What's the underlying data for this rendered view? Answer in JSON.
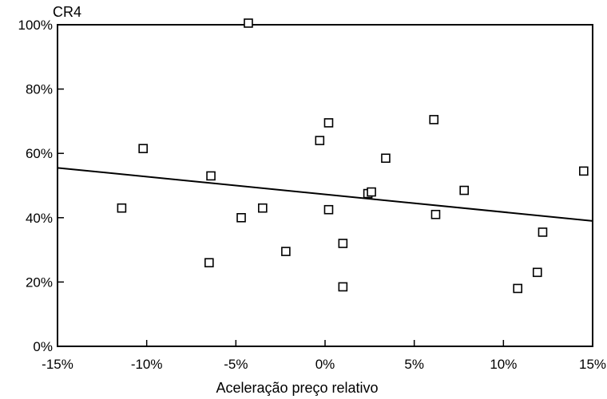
{
  "chart_data": {
    "type": "scatter",
    "title": "",
    "xlabel": "Aceleração preço relativo",
    "ylabel": "CR4",
    "xlim": [
      -15,
      15
    ],
    "ylim": [
      0,
      100
    ],
    "x_ticks": [
      -15,
      -10,
      -5,
      0,
      5,
      10,
      15
    ],
    "x_tick_labels": [
      "-15%",
      "-10%",
      "-5%",
      "0%",
      "5%",
      "10%",
      "15%"
    ],
    "y_ticks": [
      0,
      20,
      40,
      60,
      80,
      100
    ],
    "y_tick_labels": [
      "0%",
      "20%",
      "40%",
      "60%",
      "80%",
      "100%"
    ],
    "grid": false,
    "legend": "none",
    "marker": "open-square",
    "series": [
      {
        "points": [
          {
            "x": -11.4,
            "y": 43
          },
          {
            "x": -10.2,
            "y": 61.5
          },
          {
            "x": -6.5,
            "y": 26
          },
          {
            "x": -6.4,
            "y": 53
          },
          {
            "x": -4.7,
            "y": 40
          },
          {
            "x": -4.3,
            "y": 100.5
          },
          {
            "x": -3.5,
            "y": 43
          },
          {
            "x": -2.2,
            "y": 29.5
          },
          {
            "x": -0.3,
            "y": 64
          },
          {
            "x": 0.2,
            "y": 42.5
          },
          {
            "x": 0.2,
            "y": 69.5
          },
          {
            "x": 1.0,
            "y": 32
          },
          {
            "x": 1.0,
            "y": 18.5
          },
          {
            "x": 2.4,
            "y": 47.5
          },
          {
            "x": 2.6,
            "y": 48
          },
          {
            "x": 3.4,
            "y": 58.5
          },
          {
            "x": 6.1,
            "y": 70.5
          },
          {
            "x": 6.2,
            "y": 41
          },
          {
            "x": 7.8,
            "y": 48.5
          },
          {
            "x": 10.8,
            "y": 18
          },
          {
            "x": 11.9,
            "y": 23
          },
          {
            "x": 12.2,
            "y": 35.5
          },
          {
            "x": 14.5,
            "y": 54.5
          }
        ]
      }
    ],
    "trendline": {
      "x": [
        -15,
        15
      ],
      "y": [
        55.5,
        39
      ]
    }
  }
}
